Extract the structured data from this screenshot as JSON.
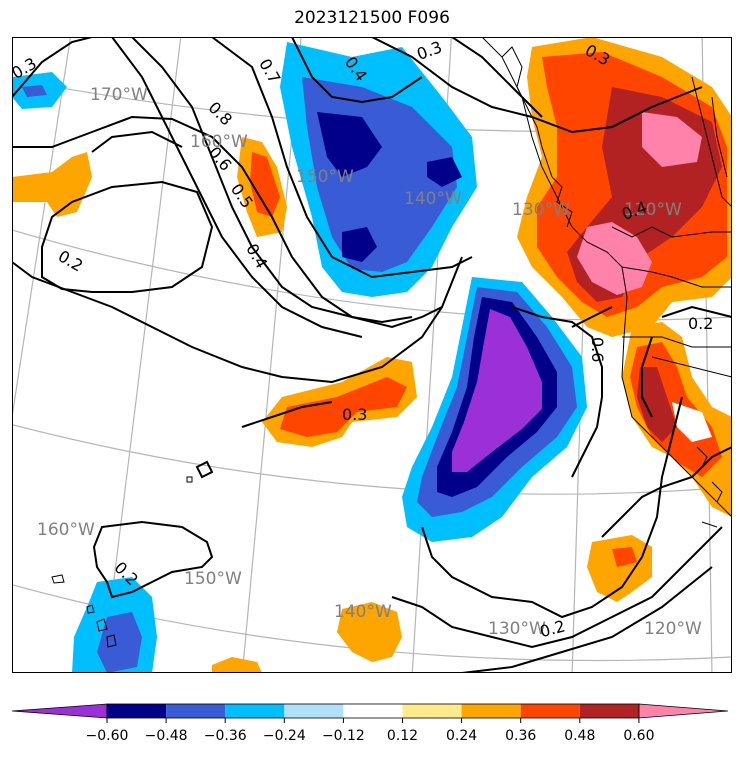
{
  "title": "2023121500 F096",
  "colorbar": {
    "ticks": [
      "−0.60",
      "−0.48",
      "−0.36",
      "−0.24",
      "−0.12",
      "0.12",
      "0.24",
      "0.36",
      "0.48",
      "0.60"
    ],
    "colors": [
      "#9b30d9",
      "#00008b",
      "#3a5bd6",
      "#00bfff",
      "#b0e0fa",
      "#ffffff",
      "#ffeb8c",
      "#ffa500",
      "#ff4500",
      "#b22222",
      "#ff82ab"
    ]
  },
  "longitude_labels": [
    "170°W",
    "160°W",
    "150°W",
    "140°W",
    "130°W",
    "120°W",
    "160°W",
    "150°W",
    "140°W",
    "130°W",
    "120°W"
  ],
  "contour_labels": [
    "0.3",
    "0.3",
    "0.4",
    "0.3",
    "0.7",
    "0.8",
    "0.6",
    "0.5",
    "0.4",
    "0.2",
    "0.3",
    "0.2",
    "0.2",
    "0.6",
    "0.2",
    "0.4"
  ]
}
